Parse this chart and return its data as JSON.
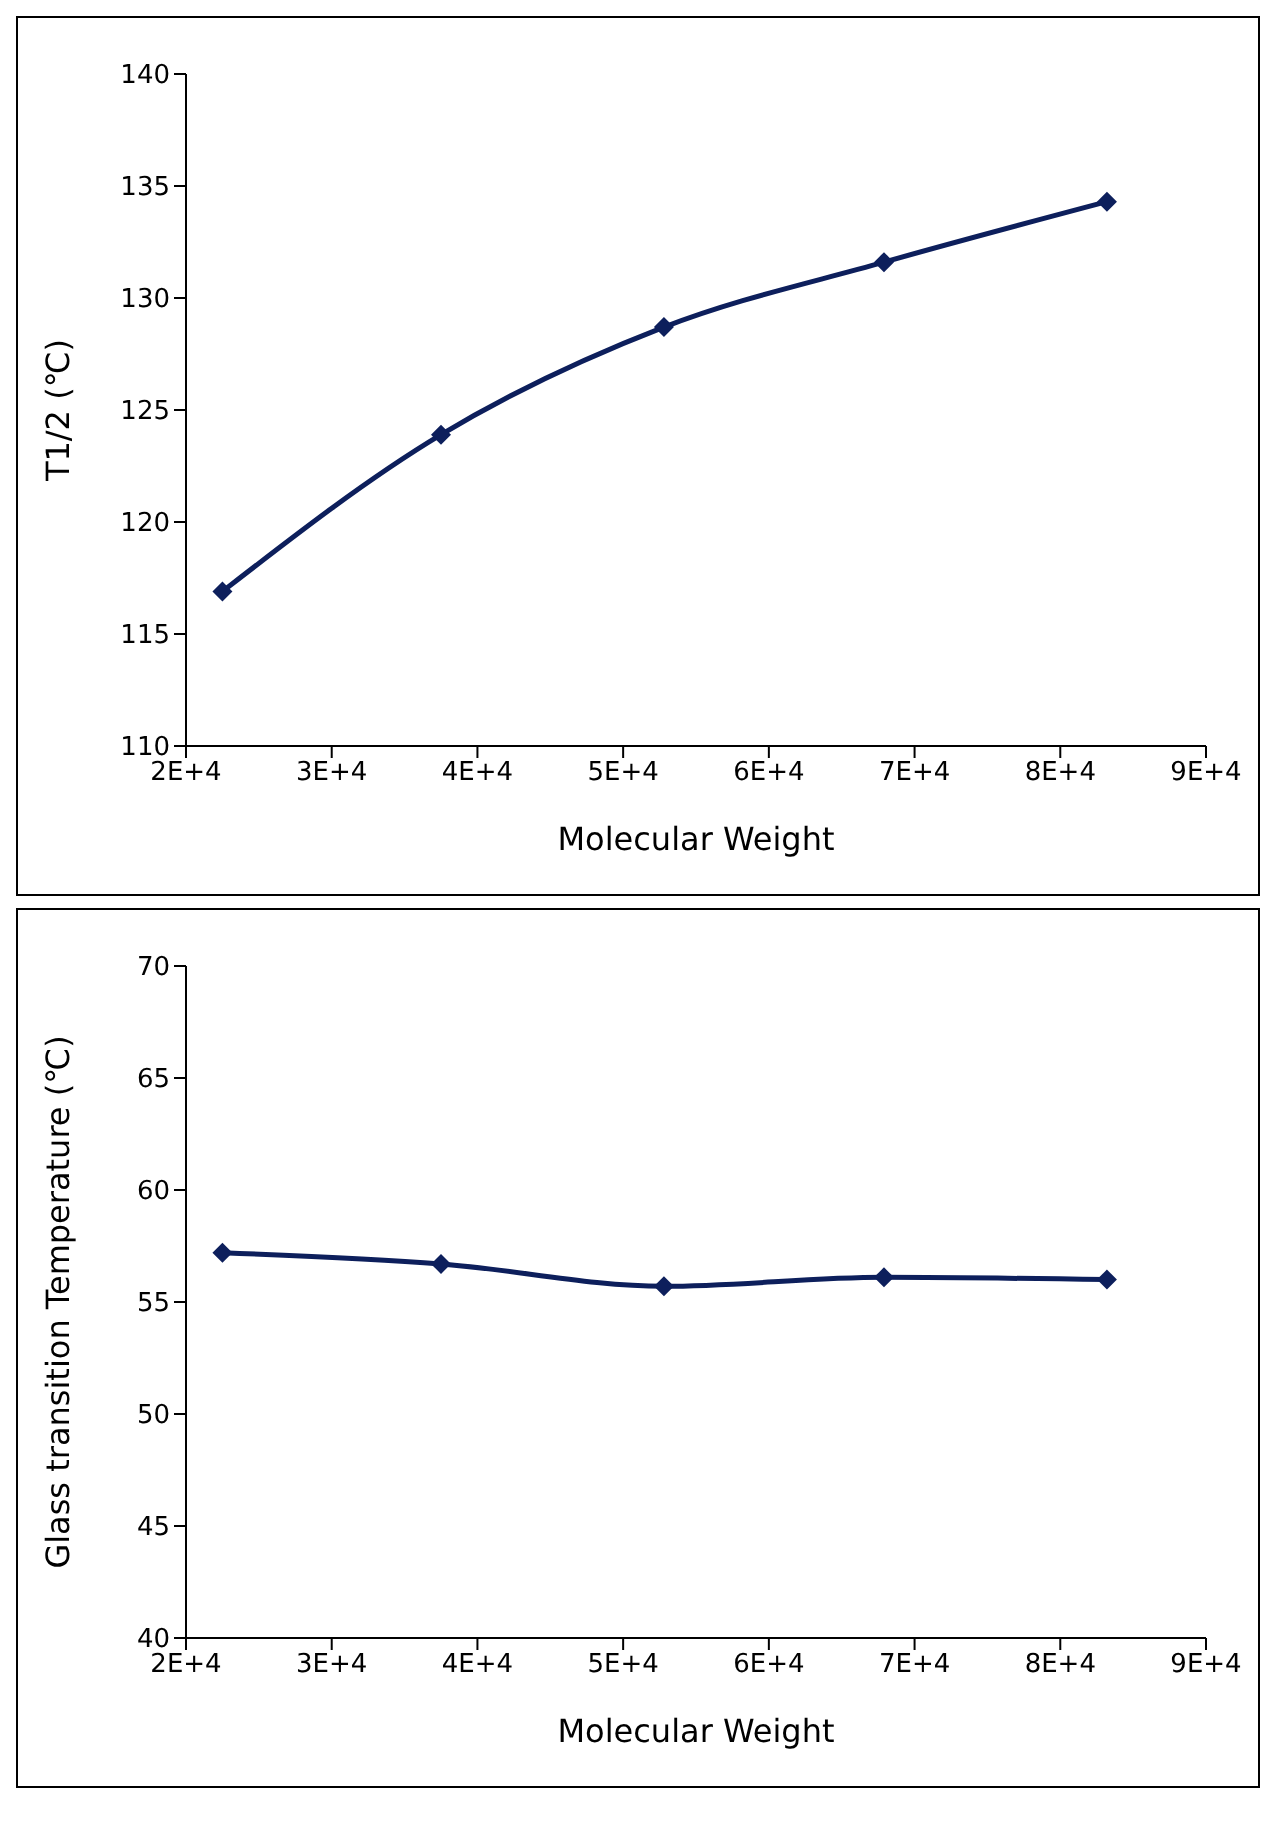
{
  "chart_data": [
    {
      "type": "line",
      "xlabel": "Molecular Weight",
      "ylabel": "T1/2 (℃)",
      "x": [
        22500,
        37500,
        52800,
        67900,
        83200
      ],
      "series": [
        {
          "color": "#0d1f5c",
          "values": [
            116.9,
            123.9,
            128.7,
            131.6,
            134.3
          ]
        }
      ],
      "xlim": [
        20000,
        90000
      ],
      "xticks": [
        {
          "value": 20000,
          "label": "2E+4"
        },
        {
          "value": 30000,
          "label": "3E+4"
        },
        {
          "value": 40000,
          "label": "4E+4"
        },
        {
          "value": 50000,
          "label": "5E+4"
        },
        {
          "value": 60000,
          "label": "6E+4"
        },
        {
          "value": 70000,
          "label": "7E+4"
        },
        {
          "value": 80000,
          "label": "8E+4"
        },
        {
          "value": 90000,
          "label": "9E+4"
        }
      ],
      "ylim": [
        110,
        140
      ],
      "yticks": [
        110,
        115,
        120,
        125,
        130,
        135,
        140
      ],
      "grid": false,
      "marker": "diamond",
      "line_style": "solid"
    },
    {
      "type": "line",
      "xlabel": "Molecular Weight",
      "ylabel": "Glass transition Temperature (℃)",
      "x": [
        22500,
        37500,
        52800,
        67900,
        83200
      ],
      "series": [
        {
          "color": "#0d1f5c",
          "values": [
            57.2,
            56.7,
            55.7,
            56.1,
            56.0
          ]
        }
      ],
      "xlim": [
        20000,
        90000
      ],
      "xticks": [
        {
          "value": 20000,
          "label": "2E+4"
        },
        {
          "value": 30000,
          "label": "3E+4"
        },
        {
          "value": 40000,
          "label": "4E+4"
        },
        {
          "value": 50000,
          "label": "5E+4"
        },
        {
          "value": 60000,
          "label": "6E+4"
        },
        {
          "value": 70000,
          "label": "7E+4"
        },
        {
          "value": 80000,
          "label": "8E+4"
        },
        {
          "value": 90000,
          "label": "9E+4"
        }
      ],
      "ylim": [
        40,
        70
      ],
      "yticks": [
        40,
        45,
        50,
        55,
        60,
        65,
        70
      ],
      "grid": false,
      "marker": "diamond",
      "line_style": "solid"
    }
  ]
}
